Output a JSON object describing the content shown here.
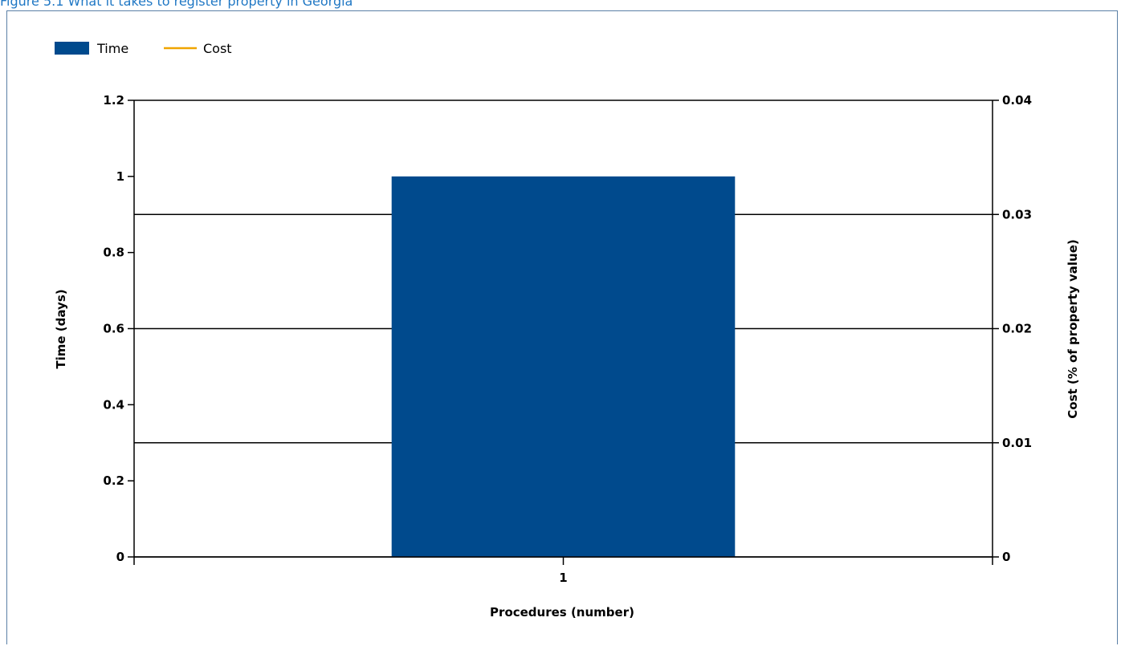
{
  "figure": {
    "caption": "Figure 5.1 What it takes to register property in Georgia"
  },
  "chart_data": {
    "type": "bar",
    "title": "",
    "xlabel": "Procedures (number)",
    "ylabel": "Time (days)",
    "y2label": "Cost (% of property value)",
    "categories": [
      "1"
    ],
    "series": [
      {
        "name": "Time",
        "type": "bar",
        "axis": "left",
        "color": "#004a8d",
        "values": [
          1
        ]
      },
      {
        "name": "Cost",
        "type": "line",
        "axis": "right",
        "color": "#f0a500",
        "values": [
          0
        ]
      }
    ],
    "ylim": [
      0,
      1.2
    ],
    "y2lim": [
      0,
      0.04
    ],
    "yticks": [
      "0",
      "0.2",
      "0.4",
      "0.6",
      "0.8",
      "1",
      "1.2"
    ],
    "y2ticks": [
      "0",
      "0.01",
      "0.02",
      "0.03",
      "0.04"
    ],
    "grid": "horizontal (right axis)",
    "legend": "top-left"
  }
}
